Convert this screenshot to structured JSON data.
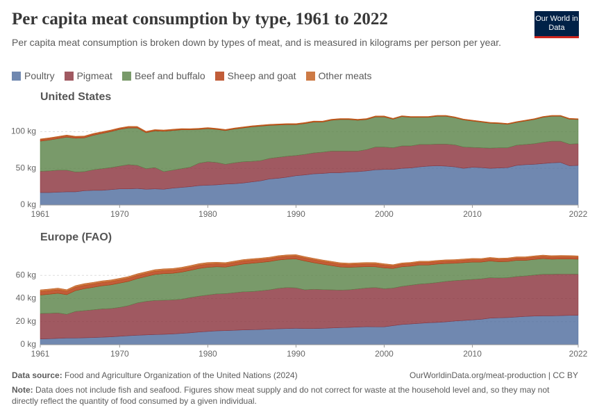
{
  "header": {
    "title": "Per capita meat consumption by type, 1961 to 2022",
    "subtitle": "Per capita meat consumption is broken down by types of meat, and is measured in kilograms per person per year.",
    "logo": "Our World in Data"
  },
  "legend": {
    "position": "top",
    "items": [
      {
        "name": "Poultry",
        "color": "#4c6a9c"
      },
      {
        "name": "Pigmeat",
        "color": "#883039"
      },
      {
        "name": "Beef and buffalo",
        "color": "#578145"
      },
      {
        "name": "Sheep and goat",
        "color": "#b13507"
      },
      {
        "name": "Other meats",
        "color": "#c05917"
      }
    ]
  },
  "chart_data": [
    {
      "type": "stacked-area",
      "title": "United States",
      "x": [
        1961,
        1962,
        1963,
        1964,
        1965,
        1966,
        1967,
        1968,
        1969,
        1970,
        1971,
        1972,
        1973,
        1974,
        1975,
        1976,
        1977,
        1978,
        1979,
        1980,
        1981,
        1982,
        1983,
        1984,
        1985,
        1986,
        1987,
        1988,
        1989,
        1990,
        1991,
        1992,
        1993,
        1994,
        1995,
        1996,
        1997,
        1998,
        1999,
        2000,
        2001,
        2002,
        2003,
        2004,
        2005,
        2006,
        2007,
        2008,
        2009,
        2010,
        2011,
        2012,
        2013,
        2014,
        2015,
        2016,
        2017,
        2018,
        2019,
        2020,
        2021,
        2022
      ],
      "xlim": [
        1961,
        2022
      ],
      "xticks": [
        1961,
        1970,
        1980,
        1990,
        2000,
        2010,
        2022
      ],
      "ylim": [
        0,
        125
      ],
      "yticks": [
        {
          "value": 0,
          "label": "0 kg"
        },
        {
          "value": 50,
          "label": "50 kg"
        },
        {
          "value": 100,
          "label": "100 kg"
        }
      ],
      "grid": true,
      "series": [
        {
          "values": [
            17,
            17,
            17.5,
            18,
            18,
            19.5,
            20,
            20,
            21,
            22,
            22,
            22.5,
            21.5,
            22,
            21.5,
            23,
            24,
            25,
            26.5,
            27,
            27.5,
            28.5,
            29,
            30,
            31.5,
            33,
            35.5,
            36.5,
            38,
            40,
            41,
            42.5,
            43,
            44,
            44,
            45,
            45.5,
            46.5,
            48,
            48.5,
            48.5,
            50,
            50.5,
            52,
            53,
            53.5,
            53,
            52,
            50,
            51.5,
            51,
            50,
            50.5,
            51,
            54,
            55,
            55.5,
            56.5,
            57.5,
            58,
            53.5,
            54
          ]
        },
        {
          "values": [
            29,
            29.5,
            30,
            29.5,
            27,
            26,
            28,
            29.5,
            30,
            31,
            33,
            31.5,
            28,
            29,
            24,
            24.5,
            25.5,
            26.5,
            30.5,
            32,
            30.5,
            27,
            28.5,
            29,
            28,
            27.5,
            28,
            28.5,
            28.5,
            27.5,
            28,
            28.5,
            29,
            29.5,
            29.5,
            28.5,
            28,
            29,
            31,
            30.5,
            29.5,
            30.5,
            30,
            30.5,
            29.5,
            29.5,
            30,
            30,
            29,
            27,
            27,
            27.5,
            27.5,
            27,
            27.5,
            27.5,
            28,
            29,
            29.5,
            29,
            29.5,
            29.5
          ]
        },
        {
          "values": [
            41,
            42,
            43,
            45,
            46,
            46,
            47,
            48,
            49,
            50,
            50,
            51,
            49,
            50,
            55,
            54,
            53,
            51,
            46,
            45,
            45,
            46,
            46,
            46,
            47,
            47,
            45,
            44,
            43,
            42,
            42,
            42,
            41,
            42,
            43,
            43,
            42,
            41,
            41,
            41,
            39,
            40,
            39,
            37,
            37,
            38,
            38,
            37,
            37,
            36,
            35,
            34,
            33,
            32,
            31,
            32,
            33,
            34,
            34,
            34,
            34,
            33
          ]
        },
        {
          "values": [
            2.2,
            2.2,
            2.1,
            2,
            1.8,
            1.7,
            1.6,
            1.5,
            1.4,
            1.3,
            1.3,
            1.2,
            1.1,
            1,
            0.9,
            0.9,
            0.8,
            0.7,
            0.7,
            0.7,
            0.7,
            0.7,
            0.7,
            0.7,
            0.7,
            0.7,
            0.7,
            0.7,
            0.7,
            0.7,
            0.7,
            0.7,
            0.6,
            0.6,
            0.6,
            0.6,
            0.6,
            0.6,
            0.6,
            0.6,
            0.5,
            0.5,
            0.5,
            0.5,
            0.5,
            0.5,
            0.5,
            0.5,
            0.5,
            0.5,
            0.5,
            0.5,
            0.5,
            0.5,
            0.5,
            0.5,
            0.5,
            0.5,
            0.5,
            0.5,
            0.5,
            0.5
          ]
        },
        {
          "values": [
            0.9,
            0.9,
            0.9,
            0.9,
            0.9,
            0.9,
            0.9,
            0.9,
            0.9,
            0.9,
            0.9,
            0.9,
            0.9,
            0.9,
            0.9,
            0.9,
            0.9,
            0.9,
            0.9,
            0.9,
            0.8,
            0.8,
            0.8,
            0.8,
            0.8,
            0.8,
            0.8,
            0.8,
            0.8,
            0.8,
            0.8,
            0.8,
            0.8,
            0.8,
            0.8,
            0.8,
            0.8,
            0.8,
            0.8,
            0.8,
            0.7,
            0.7,
            0.7,
            0.7,
            0.7,
            0.7,
            0.7,
            0.7,
            0.7,
            0.7,
            0.7,
            0.7,
            0.7,
            0.7,
            0.7,
            0.7,
            0.7,
            0.7,
            0.7,
            0.7,
            0.7,
            0.7
          ]
        }
      ]
    },
    {
      "type": "stacked-area",
      "title": "Europe (FAO)",
      "x": [
        1961,
        1962,
        1963,
        1964,
        1965,
        1966,
        1967,
        1968,
        1969,
        1970,
        1971,
        1972,
        1973,
        1974,
        1975,
        1976,
        1977,
        1978,
        1979,
        1980,
        1981,
        1982,
        1983,
        1984,
        1985,
        1986,
        1987,
        1988,
        1989,
        1990,
        1991,
        1992,
        1993,
        1994,
        1995,
        1996,
        1997,
        1998,
        1999,
        2000,
        2001,
        2002,
        2003,
        2004,
        2005,
        2006,
        2007,
        2008,
        2009,
        2010,
        2011,
        2012,
        2013,
        2014,
        2015,
        2016,
        2017,
        2018,
        2019,
        2020,
        2021,
        2022
      ],
      "xlim": [
        1961,
        2022
      ],
      "xticks": [
        1961,
        1970,
        1980,
        1990,
        2000,
        2010,
        2022
      ],
      "ylim": [
        0,
        80
      ],
      "yticks": [
        {
          "value": 0,
          "label": "0 kg"
        },
        {
          "value": 20,
          "label": "20 kg"
        },
        {
          "value": 40,
          "label": "40 kg"
        },
        {
          "value": 60,
          "label": "60 kg"
        }
      ],
      "grid": true,
      "series": [
        {
          "values": [
            5,
            5.2,
            5.5,
            5.8,
            5.8,
            6,
            6.2,
            6.5,
            6.8,
            7.3,
            7.8,
            8.2,
            8.5,
            8.8,
            9,
            9.3,
            9.8,
            10.3,
            11,
            11.5,
            12,
            12.2,
            12.5,
            12.8,
            13,
            13.2,
            13.5,
            13.8,
            14,
            14.2,
            14,
            14,
            14.2,
            14.5,
            14.8,
            15,
            15.3,
            15.6,
            15.5,
            15.5,
            16.5,
            17.5,
            18,
            18.5,
            19,
            19.3,
            19.8,
            20.5,
            21,
            21.5,
            22,
            23,
            23.3,
            23.5,
            24,
            24.5,
            24.8,
            25,
            25,
            25.2,
            25.4,
            25.5
          ]
        },
        {
          "values": [
            22,
            22,
            22,
            20.5,
            23,
            23.5,
            24,
            24.5,
            24.5,
            25,
            26,
            28,
            29,
            29.5,
            29.5,
            29.5,
            29.5,
            30.5,
            31,
            31.5,
            32,
            32,
            32.5,
            33,
            33,
            33.5,
            34,
            35,
            35.5,
            35,
            33.5,
            34,
            33.5,
            33,
            32.5,
            32.5,
            33,
            33.5,
            34,
            33,
            32.5,
            33,
            33.5,
            34,
            34,
            34.5,
            35,
            35,
            35,
            35,
            35,
            35,
            34.5,
            34.5,
            35,
            35,
            35.5,
            36,
            36,
            36,
            35.8,
            35.5
          ]
        },
        {
          "values": [
            16,
            16.5,
            17,
            17,
            18,
            19,
            19.5,
            20,
            20.5,
            21,
            21,
            21,
            21.5,
            22.5,
            23,
            23,
            23.5,
            23.5,
            24,
            24,
            23.5,
            23,
            23.5,
            24,
            24.5,
            24.5,
            24.5,
            24.5,
            24.5,
            25,
            25,
            23,
            22,
            21,
            20,
            19.5,
            19,
            18.5,
            18,
            18,
            17,
            17,
            16.5,
            16.5,
            16,
            16,
            15.5,
            15,
            15,
            15,
            14.5,
            14.5,
            14,
            14,
            14,
            13.5,
            13.5,
            13.5,
            13,
            13,
            13,
            13
          ]
        },
        {
          "values": [
            3,
            3,
            3,
            2.9,
            2.9,
            2.9,
            2.8,
            2.8,
            2.8,
            2.7,
            2.7,
            2.7,
            2.7,
            2.7,
            2.7,
            2.7,
            2.7,
            2.7,
            2.7,
            2.7,
            2.6,
            2.6,
            2.6,
            2.6,
            2.6,
            2.5,
            2.5,
            2.5,
            2.5,
            2.5,
            2.5,
            2.5,
            2.4,
            2.4,
            2.4,
            2.3,
            2.3,
            2.3,
            2.3,
            2.3,
            2.2,
            2.2,
            2.2,
            2.2,
            2.2,
            2.1,
            2.1,
            2.1,
            2.1,
            2.1,
            2,
            2,
            2,
            2,
            2,
            2,
            2,
            2,
            2,
            2,
            1.9,
            1.8
          ]
        },
        {
          "values": [
            1.5,
            1.5,
            1.5,
            1.5,
            1.5,
            1.5,
            1.5,
            1.5,
            1.5,
            1.5,
            1.5,
            1.5,
            1.5,
            1.5,
            1.5,
            1.5,
            1.5,
            1.5,
            1.5,
            1.5,
            1.3,
            1.3,
            1.3,
            1.3,
            1.3,
            1.3,
            1.3,
            1.3,
            1.3,
            1.3,
            1.3,
            1.3,
            1.3,
            1.3,
            1.3,
            1.3,
            1.3,
            1.3,
            1.3,
            1.3,
            1.1,
            1.1,
            1.1,
            1.1,
            1.1,
            1.1,
            1.1,
            1.1,
            1.1,
            1.1,
            1.1,
            1.1,
            1.1,
            1.1,
            1.1,
            1.1,
            1.1,
            1.1,
            1.1,
            1.1,
            1.1,
            1.1
          ]
        }
      ]
    }
  ],
  "footer": {
    "source_label": "Data source:",
    "source": "Food and Agriculture Organization of the United Nations (2024)",
    "url": "OurWorldinData.org/meat-production | CC BY",
    "note_label": "Note:",
    "note": "Data does not include fish and seafood. Figures show meat supply and do not correct for waste at the household level and, so they may not directly reflect the quantity of food consumed by a given individual."
  }
}
